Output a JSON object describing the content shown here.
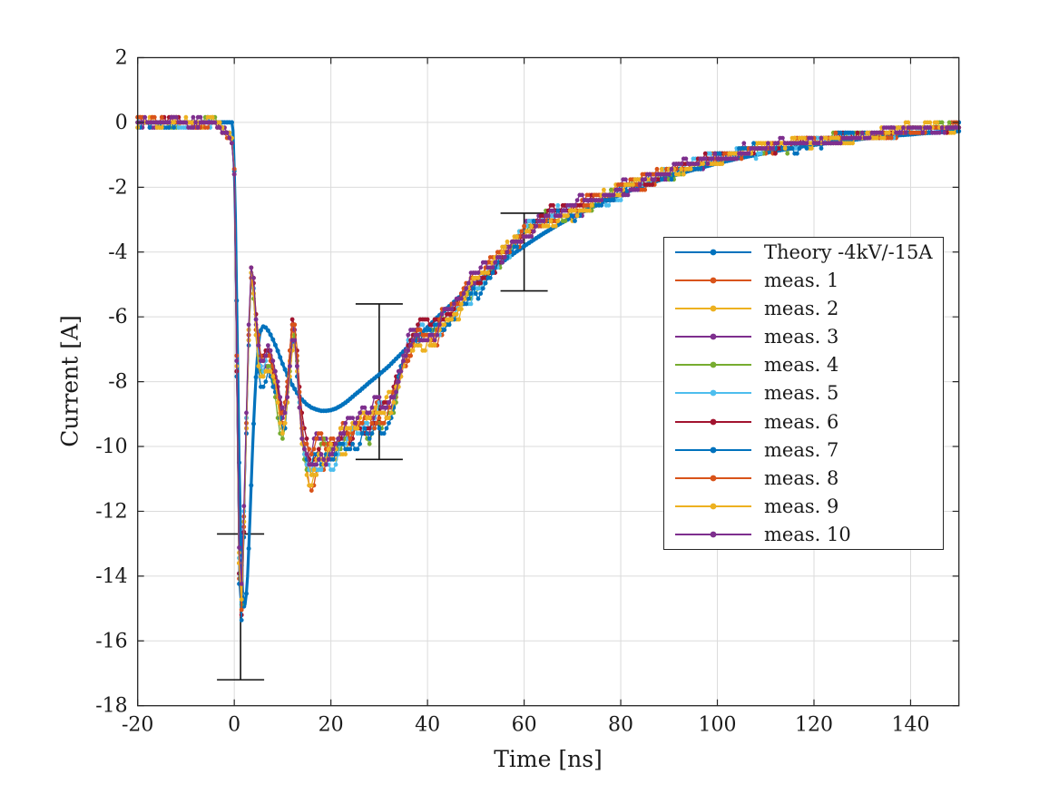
{
  "chart_data": {
    "type": "line",
    "title": "",
    "xlabel": "Time [ns]",
    "ylabel": "Current [A]",
    "xlim": [
      -20,
      150
    ],
    "ylim": [
      -18,
      2
    ],
    "x_ticks": [
      -20,
      0,
      20,
      40,
      60,
      80,
      100,
      120,
      140
    ],
    "x_tick_labels": [
      "-20",
      "0",
      "20",
      "40",
      "60",
      "80",
      "100",
      "120",
      "140"
    ],
    "y_ticks": [
      2,
      0,
      -2,
      -4,
      -6,
      -8,
      -10,
      -12,
      -14,
      -16,
      -18
    ],
    "y_tick_labels": [
      "2",
      "0",
      "-2",
      "-4",
      "-6",
      "-8",
      "-10",
      "-12",
      "-14",
      "-16",
      "-18"
    ],
    "grid": true,
    "legend": {
      "position": "inside-right",
      "border": true
    },
    "style": {
      "background": "#ffffff",
      "axis_color": "#262626",
      "grid_color": "#dbdbdb",
      "text_color": "#1a1a1a",
      "errorbar_color": "#111111"
    },
    "theory": {
      "label": "Theory -4kV/-15A",
      "color": "#0072BD",
      "points": [
        [
          -20,
          0
        ],
        [
          -0.3,
          0
        ],
        [
          0.2,
          -2.5
        ],
        [
          0.6,
          -6.5
        ],
        [
          1.0,
          -10.5
        ],
        [
          1.4,
          -13.3
        ],
        [
          1.8,
          -14.8
        ],
        [
          2.1,
          -15.0
        ],
        [
          2.4,
          -14.75
        ],
        [
          2.8,
          -13.9
        ],
        [
          3.2,
          -12.4
        ],
        [
          3.6,
          -10.8
        ],
        [
          4.0,
          -9.3
        ],
        [
          4.4,
          -8.1
        ],
        [
          4.8,
          -7.15
        ],
        [
          5.2,
          -6.62
        ],
        [
          5.6,
          -6.35
        ],
        [
          6.0,
          -6.3
        ],
        [
          6.5,
          -6.33
        ],
        [
          7.0,
          -6.42
        ],
        [
          7.5,
          -6.55
        ],
        [
          8.0,
          -6.7
        ],
        [
          8.5,
          -6.87
        ],
        [
          9.0,
          -7.05
        ],
        [
          9.5,
          -7.25
        ],
        [
          10,
          -7.45
        ],
        [
          11,
          -7.8
        ],
        [
          12,
          -8.1
        ],
        [
          13,
          -8.35
        ],
        [
          14,
          -8.55
        ],
        [
          15,
          -8.7
        ],
        [
          16,
          -8.8
        ],
        [
          17,
          -8.86
        ],
        [
          18,
          -8.9
        ],
        [
          19,
          -8.9
        ],
        [
          20,
          -8.88
        ],
        [
          21,
          -8.83
        ],
        [
          22,
          -8.75
        ],
        [
          23,
          -8.65
        ],
        [
          24,
          -8.53
        ],
        [
          25,
          -8.4
        ],
        [
          26,
          -8.28
        ],
        [
          27,
          -8.15
        ],
        [
          28,
          -8.02
        ],
        [
          29,
          -7.9
        ],
        [
          30,
          -7.78
        ],
        [
          32,
          -7.52
        ],
        [
          34,
          -7.22
        ],
        [
          36,
          -6.92
        ],
        [
          38,
          -6.62
        ],
        [
          40,
          -6.32
        ],
        [
          42,
          -6.02
        ],
        [
          44,
          -5.74
        ],
        [
          46,
          -5.47
        ],
        [
          48,
          -5.21
        ],
        [
          50,
          -4.96
        ],
        [
          52,
          -4.72
        ],
        [
          54,
          -4.48
        ],
        [
          56,
          -4.25
        ],
        [
          58,
          -4.03
        ],
        [
          60,
          -3.82
        ],
        [
          62,
          -3.62
        ],
        [
          64,
          -3.43
        ],
        [
          66,
          -3.25
        ],
        [
          68,
          -3.08
        ],
        [
          70,
          -2.92
        ],
        [
          72,
          -2.77
        ],
        [
          74,
          -2.62
        ],
        [
          76,
          -2.48
        ],
        [
          78,
          -2.35
        ],
        [
          80,
          -2.22
        ],
        [
          82,
          -2.1
        ],
        [
          84,
          -1.99
        ],
        [
          86,
          -1.88
        ],
        [
          88,
          -1.78
        ],
        [
          90,
          -1.68
        ],
        [
          92,
          -1.59
        ],
        [
          94,
          -1.5
        ],
        [
          96,
          -1.42
        ],
        [
          98,
          -1.34
        ],
        [
          100,
          -1.26
        ],
        [
          102,
          -1.19
        ],
        [
          104,
          -1.12
        ],
        [
          106,
          -1.06
        ],
        [
          108,
          -1.0
        ],
        [
          110,
          -0.94
        ],
        [
          112,
          -0.88
        ],
        [
          114,
          -0.83
        ],
        [
          116,
          -0.78
        ],
        [
          118,
          -0.73
        ],
        [
          120,
          -0.69
        ],
        [
          122,
          -0.65
        ],
        [
          124,
          -0.61
        ],
        [
          126,
          -0.57
        ],
        [
          128,
          -0.54
        ],
        [
          130,
          -0.5
        ],
        [
          132,
          -0.47
        ],
        [
          134,
          -0.44
        ],
        [
          136,
          -0.42
        ],
        [
          138,
          -0.39
        ],
        [
          140,
          -0.37
        ],
        [
          142,
          -0.34
        ],
        [
          144,
          -0.32
        ],
        [
          146,
          -0.3
        ],
        [
          148,
          -0.28
        ],
        [
          150,
          -0.27
        ]
      ]
    },
    "measurement_base_points": [
      [
        -20,
        0
      ],
      [
        -4,
        -0.02
      ],
      [
        -3,
        -0.1
      ],
      [
        -2,
        -0.28
      ],
      [
        -1,
        -0.35
      ],
      [
        -0.4,
        -0.55
      ],
      [
        0,
        -1.5
      ],
      [
        0.3,
        -4.5
      ],
      [
        0.6,
        -9
      ],
      [
        0.9,
        -13
      ],
      [
        1.2,
        -15.5
      ],
      [
        1.5,
        -15.2
      ],
      [
        1.8,
        -13.8
      ],
      [
        2.1,
        -12
      ],
      [
        2.4,
        -10
      ],
      [
        2.7,
        -8.2
      ],
      [
        3.0,
        -6.6
      ],
      [
        3.3,
        -5.2
      ],
      [
        3.6,
        -4.35
      ],
      [
        3.8,
        -4.5
      ],
      [
        4.0,
        -5.2
      ],
      [
        4.5,
        -6.3
      ],
      [
        5.0,
        -7.1
      ],
      [
        5.5,
        -7.5
      ],
      [
        6.0,
        -7.6
      ],
      [
        6.5,
        -7.5
      ],
      [
        7.0,
        -7.4
      ],
      [
        7.5,
        -7.5
      ],
      [
        8.0,
        -7.8
      ],
      [
        8.5,
        -8.1
      ],
      [
        9.0,
        -8.5
      ],
      [
        9.5,
        -9.0
      ],
      [
        10.0,
        -9.3
      ],
      [
        10.3,
        -9.35
      ],
      [
        10.7,
        -9.0
      ],
      [
        11.0,
        -8.4
      ],
      [
        11.5,
        -7.4
      ],
      [
        12.0,
        -6.6
      ],
      [
        12.3,
        -6.35
      ],
      [
        12.7,
        -6.9
      ],
      [
        13.2,
        -8.0
      ],
      [
        13.7,
        -9.1
      ],
      [
        14.2,
        -9.9
      ],
      [
        14.7,
        -10.3
      ],
      [
        15.2,
        -10.6
      ],
      [
        15.7,
        -10.9
      ],
      [
        16.2,
        -10.8
      ],
      [
        16.7,
        -10.5
      ],
      [
        17.2,
        -10.35
      ],
      [
        18,
        -10.3
      ],
      [
        19,
        -10.25
      ],
      [
        20,
        -10.1
      ],
      [
        21,
        -10.25
      ],
      [
        22,
        -9.95
      ],
      [
        23,
        -9.75
      ],
      [
        24,
        -9.75
      ],
      [
        25,
        -9.4
      ],
      [
        26,
        -9.25
      ],
      [
        27,
        -9.2
      ],
      [
        28,
        -9.35
      ],
      [
        29,
        -9.25
      ],
      [
        30,
        -9.05
      ],
      [
        31,
        -9.1
      ],
      [
        32,
        -8.85
      ],
      [
        33,
        -8.45
      ],
      [
        34,
        -7.95
      ],
      [
        35,
        -7.5
      ],
      [
        36,
        -7.1
      ],
      [
        37,
        -6.8
      ],
      [
        38,
        -6.65
      ],
      [
        39,
        -6.55
      ],
      [
        40,
        -6.55
      ],
      [
        41,
        -6.6
      ],
      [
        42,
        -6.5
      ],
      [
        43,
        -6.25
      ],
      [
        44,
        -6.05
      ],
      [
        45,
        -5.9
      ],
      [
        46,
        -5.7
      ],
      [
        47,
        -5.55
      ],
      [
        48,
        -5.35
      ],
      [
        49,
        -5.15
      ],
      [
        50,
        -4.95
      ],
      [
        51,
        -4.8
      ],
      [
        52,
        -4.65
      ],
      [
        53,
        -4.5
      ],
      [
        54,
        -4.38
      ],
      [
        55,
        -4.25
      ],
      [
        56,
        -4.1
      ],
      [
        57,
        -3.95
      ],
      [
        58,
        -3.75
      ],
      [
        59,
        -3.6
      ],
      [
        60,
        -3.45
      ],
      [
        61,
        -3.35
      ],
      [
        62,
        -3.25
      ],
      [
        63,
        -3.15
      ],
      [
        64,
        -3.05
      ],
      [
        65,
        -2.98
      ],
      [
        66,
        -2.92
      ],
      [
        67,
        -2.87
      ],
      [
        68,
        -2.82
      ],
      [
        69,
        -2.77
      ],
      [
        70,
        -2.72
      ],
      [
        72,
        -2.6
      ],
      [
        74,
        -2.48
      ],
      [
        76,
        -2.36
      ],
      [
        78,
        -2.26
      ],
      [
        80,
        -2.12
      ],
      [
        82,
        -2.0
      ],
      [
        84,
        -1.9
      ],
      [
        86,
        -1.76
      ],
      [
        88,
        -1.66
      ],
      [
        90,
        -1.56
      ],
      [
        92,
        -1.46
      ],
      [
        94,
        -1.36
      ],
      [
        96,
        -1.26
      ],
      [
        98,
        -1.17
      ],
      [
        100,
        -1.1
      ],
      [
        102,
        -1.02
      ],
      [
        104,
        -0.96
      ],
      [
        106,
        -0.9
      ],
      [
        108,
        -0.83
      ],
      [
        110,
        -0.79
      ],
      [
        112,
        -0.75
      ],
      [
        114,
        -0.71
      ],
      [
        116,
        -0.67
      ],
      [
        118,
        -0.63
      ],
      [
        120,
        -0.6
      ],
      [
        122,
        -0.56
      ],
      [
        124,
        -0.53
      ],
      [
        126,
        -0.49
      ],
      [
        128,
        -0.46
      ],
      [
        130,
        -0.43
      ],
      [
        132,
        -0.39
      ],
      [
        134,
        -0.33
      ],
      [
        136,
        -0.29
      ],
      [
        138,
        -0.26
      ],
      [
        140,
        -0.23
      ],
      [
        142,
        -0.21
      ],
      [
        144,
        -0.19
      ],
      [
        146,
        -0.18
      ],
      [
        148,
        -0.17
      ],
      [
        150,
        -0.16
      ]
    ],
    "measurement_series": [
      {
        "label": "meas. 1",
        "color": "#D95319",
        "seed": 3
      },
      {
        "label": "meas. 2",
        "color": "#EDB120",
        "seed": 7
      },
      {
        "label": "meas. 3",
        "color": "#7E2F8E",
        "seed": 11
      },
      {
        "label": "meas. 4",
        "color": "#77AC30",
        "seed": 19
      },
      {
        "label": "meas. 5",
        "color": "#4DBEEE",
        "seed": 23
      },
      {
        "label": "meas. 6",
        "color": "#A2142F",
        "seed": 31
      },
      {
        "label": "meas. 7",
        "color": "#0072BD",
        "seed": 41
      },
      {
        "label": "meas. 8",
        "color": "#D95319",
        "seed": 53
      },
      {
        "label": "meas. 9",
        "color": "#EDB120",
        "seed": 67
      },
      {
        "label": "meas. 10",
        "color": "#7E2F8E",
        "seed": 79
      }
    ],
    "noise": {
      "quantum": 0.16,
      "base": 0.1,
      "scale": 0.03,
      "jitter": 0.1,
      "sample_step_ns": 0.5
    },
    "error_bars": [
      {
        "t": 1.3,
        "lo": -17.2,
        "hi": -12.7
      },
      {
        "t": 30,
        "lo": -10.4,
        "hi": -5.6
      },
      {
        "t": 60,
        "lo": -5.2,
        "hi": -2.8
      }
    ]
  }
}
